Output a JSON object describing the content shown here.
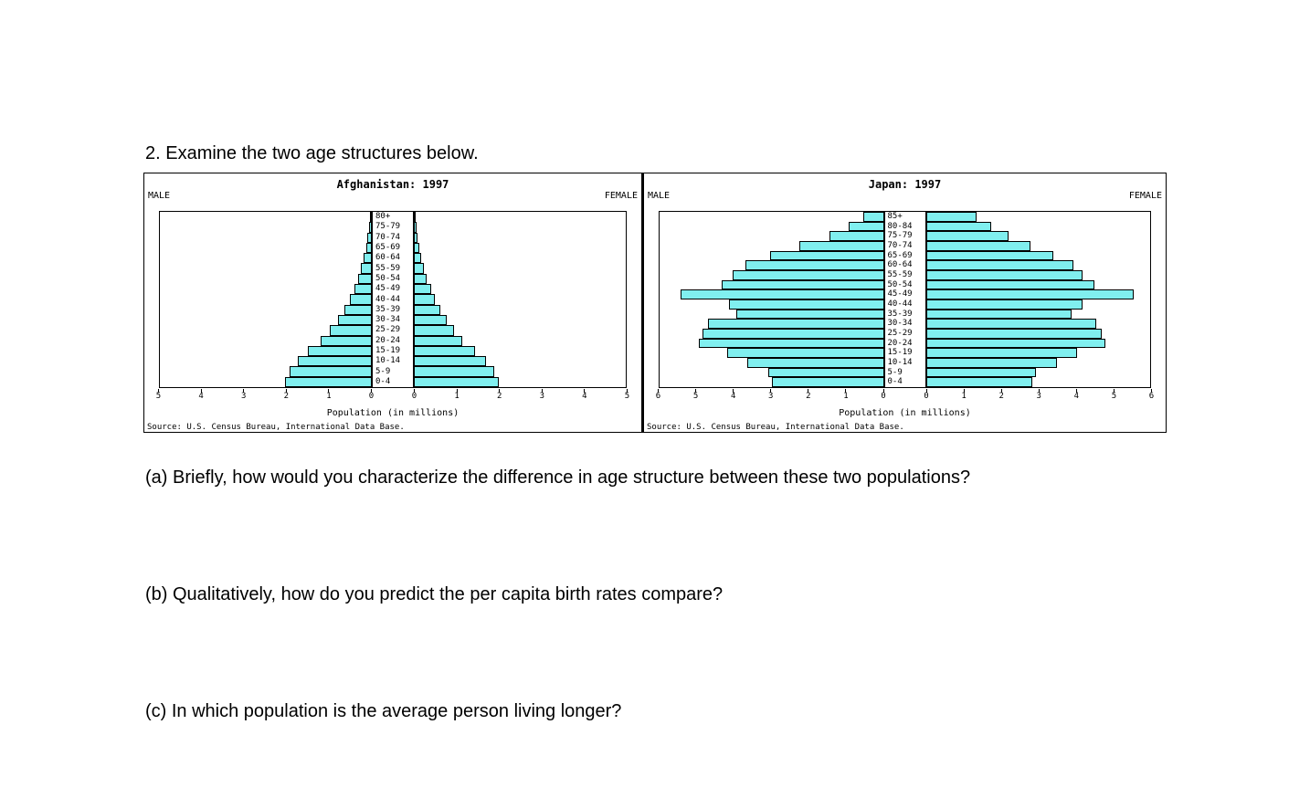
{
  "page": {
    "heading": "2. Examine the two age structures below.",
    "questions": [
      "(a) Briefly, how would you characterize the difference in age structure between these two populations?",
      "(b) Qualitatively, how do you predict the per capita birth rates compare?",
      "(c) In which population is the average person living longer?"
    ]
  },
  "chart_data": [
    {
      "type": "bar",
      "subtype": "population_pyramid",
      "title": "Afghanistan: 1997",
      "left_label": "MALE",
      "right_label": "FEMALE",
      "xlabel": "Population (in millions)",
      "source": "Source: U.S. Census Bureau, International Data Base.",
      "axis_max": 5,
      "x_ticks_male": [
        5,
        4,
        3,
        2,
        1,
        0
      ],
      "x_ticks_female": [
        0,
        1,
        2,
        3,
        4,
        5
      ],
      "bar_color": "#80EFEF",
      "age_groups": [
        "80+",
        "75-79",
        "70-74",
        "65-69",
        "60-64",
        "55-59",
        "50-54",
        "45-49",
        "40-44",
        "35-39",
        "30-34",
        "25-29",
        "20-24",
        "15-19",
        "10-14",
        "5-9",
        "0-4"
      ],
      "series": [
        {
          "name": "Male",
          "values": [
            0.05,
            0.07,
            0.1,
            0.14,
            0.19,
            0.25,
            0.32,
            0.42,
            0.52,
            0.65,
            0.8,
            1.0,
            1.2,
            1.5,
            1.75,
            1.95,
            2.05
          ]
        },
        {
          "name": "Female",
          "values": [
            0.05,
            0.06,
            0.09,
            0.13,
            0.18,
            0.24,
            0.3,
            0.4,
            0.5,
            0.62,
            0.78,
            0.95,
            1.15,
            1.45,
            1.7,
            1.9,
            2.0
          ]
        }
      ]
    },
    {
      "type": "bar",
      "subtype": "population_pyramid",
      "title": "Japan: 1997",
      "left_label": "MALE",
      "right_label": "FEMALE",
      "xlabel": "Population (in millions)",
      "source": "Source: U.S. Census Bureau, International Data Base.",
      "axis_max": 6,
      "x_ticks_male": [
        6,
        5,
        4,
        3,
        2,
        1,
        0
      ],
      "x_ticks_female": [
        0,
        1,
        2,
        3,
        4,
        5,
        6
      ],
      "bar_color": "#80EFEF",
      "age_groups": [
        "85+",
        "80-84",
        "75-79",
        "70-74",
        "65-69",
        "60-64",
        "55-59",
        "50-54",
        "45-49",
        "40-44",
        "35-39",
        "30-34",
        "25-29",
        "20-24",
        "15-19",
        "10-14",
        "5-9",
        "0-4"
      ],
      "series": [
        {
          "name": "Male",
          "values": [
            0.55,
            0.95,
            1.45,
            2.25,
            3.05,
            3.7,
            4.05,
            4.35,
            5.45,
            4.15,
            3.95,
            4.7,
            4.85,
            4.95,
            4.2,
            3.65,
            3.1,
            3.0
          ]
        },
        {
          "name": "Female",
          "values": [
            1.35,
            1.75,
            2.2,
            2.8,
            3.4,
            3.95,
            4.2,
            4.5,
            5.55,
            4.2,
            3.9,
            4.55,
            4.7,
            4.8,
            4.05,
            3.5,
            2.95,
            2.85
          ]
        }
      ]
    }
  ]
}
